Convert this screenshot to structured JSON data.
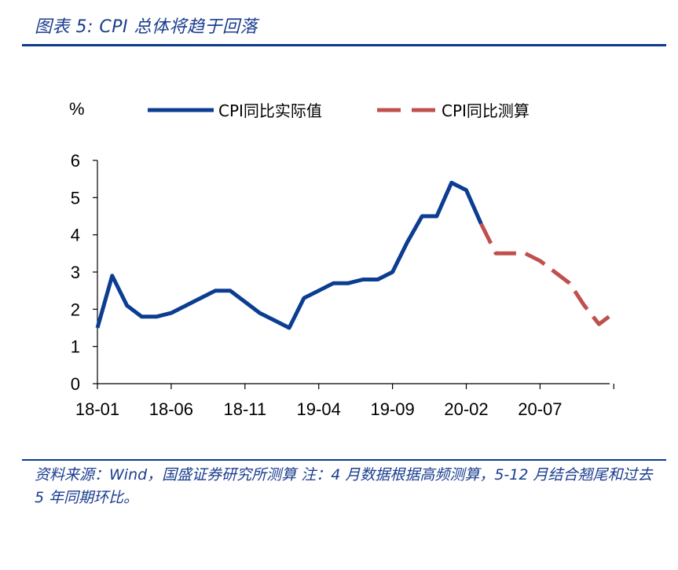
{
  "figure": {
    "title": "图表 5:  CPI 总体将趋于回落",
    "source": "资料来源：Wind，国盛证券研究所测算  注：4 月数据根据高频测算，5-12 月结合翘尾和过去 5 年同期环比。"
  },
  "chart_data": {
    "type": "line",
    "ylabel": "%",
    "ylim": [
      0,
      6
    ],
    "yticks": [
      "0",
      "1",
      "2",
      "3",
      "4",
      "5",
      "6"
    ],
    "xtick_labels": [
      "18-01",
      "18-06",
      "18-11",
      "19-04",
      "19-09",
      "20-02",
      "20-07"
    ],
    "legend_position": "top",
    "series": [
      {
        "name": "CPI同比实际值",
        "color": "#0b3d91",
        "style": "solid",
        "x": [
          "2018-01",
          "2018-02",
          "2018-03",
          "2018-04",
          "2018-05",
          "2018-06",
          "2018-07",
          "2018-08",
          "2018-09",
          "2018-10",
          "2018-11",
          "2018-12",
          "2019-01",
          "2019-02",
          "2019-03",
          "2019-04",
          "2019-05",
          "2019-06",
          "2019-07",
          "2019-08",
          "2019-09",
          "2019-10",
          "2019-11",
          "2019-12",
          "2020-01",
          "2020-02",
          "2020-03"
        ],
        "values": [
          1.5,
          2.9,
          2.1,
          1.8,
          1.8,
          1.9,
          2.1,
          2.3,
          2.5,
          2.5,
          2.2,
          1.9,
          1.7,
          1.5,
          2.3,
          2.5,
          2.7,
          2.7,
          2.8,
          2.8,
          3.0,
          3.8,
          4.5,
          4.5,
          5.4,
          5.2,
          4.3
        ]
      },
      {
        "name": "CPI同比测算",
        "color": "#c0504d",
        "style": "dashed",
        "x": [
          "2020-03",
          "2020-04",
          "2020-05",
          "2020-06",
          "2020-07",
          "2020-08",
          "2020-09",
          "2020-10",
          "2020-11",
          "2020-12"
        ],
        "values": [
          4.3,
          3.5,
          3.5,
          3.5,
          3.3,
          3.0,
          2.7,
          2.1,
          1.6,
          1.9
        ]
      }
    ]
  }
}
